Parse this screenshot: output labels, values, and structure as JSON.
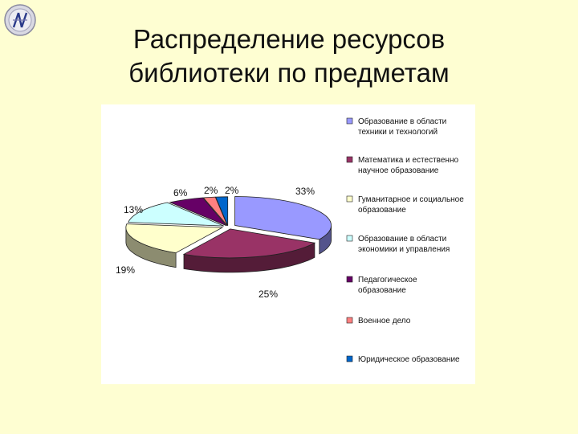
{
  "title": {
    "line1": "Распределение ресурсов",
    "line2": "библиотеки по предметам"
  },
  "logo": {
    "icon": "university-emblem-icon"
  },
  "chart_data": {
    "type": "pie",
    "style": "3d-exploded",
    "categories": [
      "Образование в области техники и технологий",
      "Математика и естественно научное образование",
      "Гуманитарное и социальное образование",
      "Образование в области экономики и управления",
      "Педагогическое образование",
      "Военное дело",
      "Юридическое образование"
    ],
    "legend_lines": [
      [
        "Образование в области",
        "техники и технологий"
      ],
      [
        "Математика и естественно",
        "научное образование"
      ],
      [
        "Гуманитарное и социальное",
        "образование"
      ],
      [
        "Образование в области",
        "экономики и управления"
      ],
      [
        "Педагогическое",
        "образование"
      ],
      [
        "Военное дело"
      ],
      [
        "Юридическое образование"
      ]
    ],
    "values": [
      33,
      25,
      19,
      13,
      6,
      2,
      2
    ],
    "labels": [
      "33%",
      "25%",
      "19%",
      "13%",
      "6%",
      "2%",
      "2%"
    ],
    "colors": [
      "#9999ff",
      "#993366",
      "#ffffcc",
      "#ccffff",
      "#660066",
      "#ff8080",
      "#0066cc"
    ],
    "legend_position": "right"
  }
}
